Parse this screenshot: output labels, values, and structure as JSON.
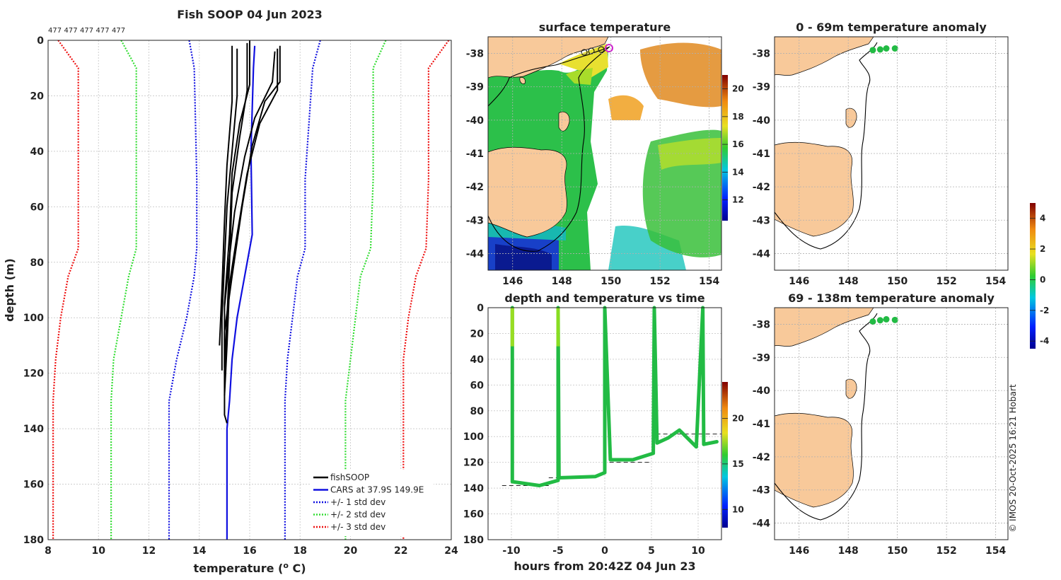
{
  "colors": {
    "fishsoop": "#000000",
    "cars": "#1010e0",
    "std1": "#1010e0",
    "std2": "#33dd33",
    "std3": "#ee1111",
    "land": "#f8c99a",
    "water_green": "#22bb44",
    "sst_orange": "#e08a20"
  },
  "copyright": "© IMOS 20-Oct-2025 16:21 Hobart",
  "chart_data": [
    {
      "type": "line",
      "id": "profile",
      "title": "Fish SOOP 04 Jun 2023",
      "xlabel": "temperature (",
      "xlabel_sup": "o",
      "xlabel_end": " C)",
      "ylabel": "depth (m)",
      "xlim": [
        8,
        24
      ],
      "ylim": [
        0,
        180
      ],
      "xticks": [
        "8",
        "10",
        "12",
        "14",
        "16",
        "18",
        "20",
        "22",
        "24"
      ],
      "yticks": [
        "0",
        "20",
        "40",
        "60",
        "80",
        "100",
        "120",
        "140",
        "160",
        "180"
      ],
      "counts": [
        "477",
        "477",
        "477",
        "477",
        "477"
      ],
      "legend": [
        "fishSOOP",
        "CARS at 37.9S 149.9E",
        "+/- 1 std dev",
        "+/- 2 std dev",
        "+/- 3 std dev"
      ],
      "series": [
        {
          "name": "cars",
          "points": [
            [
              16.2,
              2
            ],
            [
              16.15,
              10
            ],
            [
              16.05,
              40
            ],
            [
              16.1,
              70
            ],
            [
              15.8,
              85
            ],
            [
              15.5,
              100
            ],
            [
              15.3,
              115
            ],
            [
              15.2,
              130
            ],
            [
              15.1,
              140
            ],
            [
              15.1,
              180
            ]
          ]
        },
        {
          "name": "std1_left",
          "points": [
            [
              13.6,
              0
            ],
            [
              13.8,
              10
            ],
            [
              13.9,
              50
            ],
            [
              13.9,
              75
            ],
            [
              13.8,
              85
            ],
            [
              13.5,
              100
            ],
            [
              13.1,
              115
            ],
            [
              12.8,
              130
            ],
            [
              12.8,
              180
            ]
          ]
        },
        {
          "name": "std1_right",
          "points": [
            [
              18.8,
              0
            ],
            [
              18.5,
              10
            ],
            [
              18.2,
              50
            ],
            [
              18.2,
              75
            ],
            [
              17.9,
              85
            ],
            [
              17.7,
              100
            ],
            [
              17.5,
              115
            ],
            [
              17.4,
              130
            ],
            [
              17.4,
              180
            ]
          ]
        },
        {
          "name": "std2_left",
          "points": [
            [
              10.9,
              0
            ],
            [
              11.5,
              10
            ],
            [
              11.5,
              50
            ],
            [
              11.5,
              75
            ],
            [
              11.2,
              85
            ],
            [
              10.9,
              100
            ],
            [
              10.6,
              115
            ],
            [
              10.5,
              130
            ],
            [
              10.5,
              180
            ]
          ]
        },
        {
          "name": "std2_right",
          "points": [
            [
              21.4,
              0
            ],
            [
              20.9,
              10
            ],
            [
              20.9,
              50
            ],
            [
              20.8,
              75
            ],
            [
              20.4,
              85
            ],
            [
              20.2,
              100
            ],
            [
              20.0,
              115
            ],
            [
              19.8,
              130
            ],
            [
              19.8,
              180
            ]
          ]
        },
        {
          "name": "std3_left",
          "points": [
            [
              8.4,
              0
            ],
            [
              9.2,
              10
            ],
            [
              9.2,
              50
            ],
            [
              9.2,
              75
            ],
            [
              8.8,
              85
            ],
            [
              8.5,
              100
            ],
            [
              8.3,
              115
            ],
            [
              8.2,
              130
            ],
            [
              8.2,
              180
            ]
          ]
        },
        {
          "name": "std3_right",
          "points": [
            [
              23.9,
              0
            ],
            [
              23.1,
              10
            ],
            [
              23.1,
              50
            ],
            [
              23.0,
              75
            ],
            [
              22.6,
              85
            ],
            [
              22.3,
              100
            ],
            [
              22.1,
              115
            ],
            [
              22.1,
              130
            ],
            [
              22.1,
              180
            ]
          ]
        },
        {
          "name": "fish1",
          "points": [
            [
              15.9,
              1
            ],
            [
              15.9,
              18
            ],
            [
              15.6,
              35
            ],
            [
              15.3,
              55
            ],
            [
              15.2,
              80
            ],
            [
              15.1,
              100
            ],
            [
              15.0,
              120
            ]
          ]
        },
        {
          "name": "fish2",
          "points": [
            [
              16.0,
              0
            ],
            [
              16.0,
              16
            ],
            [
              15.6,
              30
            ],
            [
              15.3,
              48
            ],
            [
              15.2,
              70
            ],
            [
              15.0,
              95
            ],
            [
              15.0,
              118
            ]
          ]
        },
        {
          "name": "fish3",
          "points": [
            [
              17.2,
              2
            ],
            [
              17.2,
              15
            ],
            [
              16.6,
              22
            ],
            [
              16.1,
              38
            ],
            [
              15.7,
              60
            ],
            [
              15.3,
              85
            ],
            [
              15.0,
              105
            ],
            [
              15.0,
              135
            ],
            [
              15.1,
              138
            ]
          ]
        },
        {
          "name": "fish4",
          "points": [
            [
              17.1,
              3
            ],
            [
              17.1,
              18
            ],
            [
              16.4,
              30
            ],
            [
              15.9,
              48
            ],
            [
              15.5,
              70
            ],
            [
              15.2,
              88
            ],
            [
              15.1,
              110
            ],
            [
              15.0,
              128
            ]
          ]
        },
        {
          "name": "fish5",
          "points": [
            [
              15.5,
              3
            ],
            [
              15.5,
              20
            ],
            [
              15.3,
              40
            ],
            [
              15.1,
              60
            ],
            [
              15.0,
              80
            ],
            [
              14.9,
              100
            ],
            [
              14.9,
              119
            ]
          ]
        },
        {
          "name": "fish6",
          "points": [
            [
              15.3,
              2
            ],
            [
              15.3,
              22
            ],
            [
              15.1,
              45
            ],
            [
              15.0,
              65
            ],
            [
              14.9,
              90
            ],
            [
              14.8,
              110
            ]
          ]
        },
        {
          "name": "fish7",
          "points": [
            [
              17.0,
              4
            ],
            [
              16.9,
              15
            ],
            [
              16.2,
              28
            ],
            [
              15.8,
              42
            ],
            [
              15.4,
              62
            ],
            [
              15.2,
              78
            ],
            [
              15.0,
              96
            ]
          ]
        }
      ]
    },
    {
      "type": "heatmap",
      "id": "sst_map",
      "title": "surface temperature",
      "xlim": [
        145,
        154.5
      ],
      "ylim": [
        -44.5,
        -37.5
      ],
      "xticks": [
        "146",
        "148",
        "150",
        "152",
        "154"
      ],
      "yticks": [
        "-38",
        "-39",
        "-40",
        "-41",
        "-42",
        "-43",
        "-44"
      ],
      "colorbar_ticks": [
        "12",
        "14",
        "16",
        "18",
        "20"
      ],
      "colorbar_range": [
        10.5,
        21
      ]
    },
    {
      "type": "scatter",
      "id": "depth_time",
      "title": "depth and temperature vs time",
      "xlabel": "hours from 20:42Z 04 Jun 23",
      "xlim": [
        -12.5,
        12.5
      ],
      "ylim": [
        0,
        180
      ],
      "xticks": [
        "-10",
        "-5",
        "0",
        "5",
        "10"
      ],
      "yticks": [
        "0",
        "20",
        "40",
        "60",
        "80",
        "100",
        "120",
        "140",
        "160",
        "180"
      ],
      "colorbar_ticks": [
        "10",
        "15",
        "20"
      ],
      "colorbar_range": [
        8,
        24
      ],
      "series": [
        {
          "name": "track",
          "points": [
            [
              -9.9,
              0
            ],
            [
              -9.9,
              135
            ],
            [
              -7,
              138
            ],
            [
              -5,
              134
            ],
            [
              -5,
              0
            ],
            [
              -4.9,
              132
            ],
            [
              -1,
              131
            ],
            [
              0,
              128
            ],
            [
              0,
              0
            ],
            [
              0.6,
              118
            ],
            [
              3,
              118
            ],
            [
              5.2,
              113
            ],
            [
              5.3,
              0
            ],
            [
              5.6,
              105
            ],
            [
              6.8,
              101
            ],
            [
              8,
              95
            ],
            [
              9.8,
              108
            ],
            [
              10.5,
              0
            ],
            [
              10.6,
              106
            ],
            [
              12,
              104
            ]
          ]
        }
      ],
      "dashes": [
        [
          -11,
          -6,
          138
        ],
        [
          -6,
          -1,
          132
        ],
        [
          0.5,
          5,
          120
        ],
        [
          5.5,
          12.5,
          98
        ]
      ]
    },
    {
      "type": "scatter",
      "id": "anom1",
      "title": "0 - 69m temperature anomaly",
      "xlim": [
        145,
        154.5
      ],
      "ylim": [
        -44.5,
        -37.5
      ],
      "xticks": [
        "146",
        "148",
        "150",
        "152",
        "154"
      ],
      "yticks": [
        "-38",
        "-39",
        "-40",
        "-41",
        "-42",
        "-43",
        "-44"
      ],
      "points": [
        [
          149.0,
          -37.9
        ],
        [
          149.3,
          -37.88
        ],
        [
          149.55,
          -37.85
        ],
        [
          149.9,
          -37.85
        ]
      ]
    },
    {
      "type": "scatter",
      "id": "anom2",
      "title": "69 - 138m temperature anomaly",
      "xlim": [
        145,
        154.5
      ],
      "ylim": [
        -44.5,
        -37.5
      ],
      "xticks": [
        "146",
        "148",
        "150",
        "152",
        "154"
      ],
      "yticks": [
        "-38",
        "-39",
        "-40",
        "-41",
        "-42",
        "-43",
        "-44"
      ],
      "points": [
        [
          149.0,
          -37.92
        ],
        [
          149.3,
          -37.88
        ],
        [
          149.55,
          -37.85
        ],
        [
          149.9,
          -37.87
        ]
      ]
    },
    {
      "type": "colorbar",
      "id": "anom_colorbar",
      "ticks": [
        "4",
        "2",
        "0",
        "-2",
        "-4"
      ],
      "range": [
        -4.5,
        5
      ]
    }
  ]
}
